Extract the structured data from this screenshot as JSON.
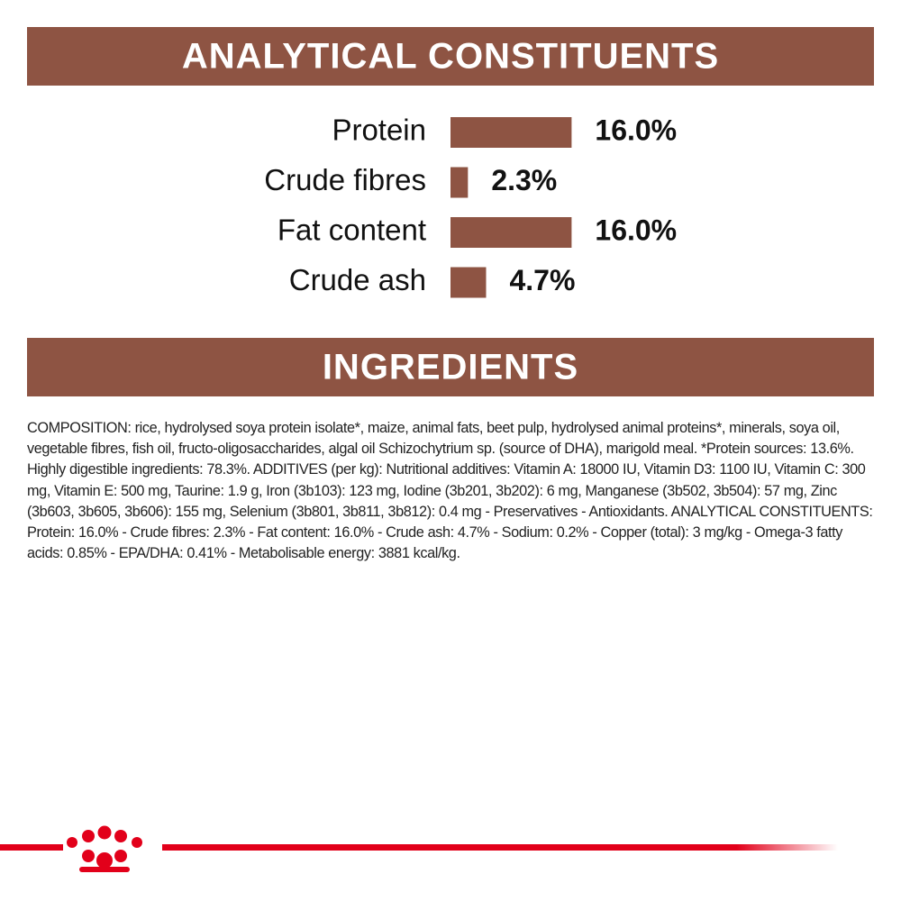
{
  "chart_data": {
    "type": "bar",
    "orientation": "horizontal",
    "title": "ANALYTICAL CONSTITUENTS",
    "categories": [
      "Protein",
      "Crude fibres",
      "Fat content",
      "Crude ash"
    ],
    "values": [
      16.0,
      2.3,
      16.0,
      4.7
    ],
    "value_labels": [
      "16.0%",
      "2.3%",
      "16.0%",
      "4.7%"
    ],
    "color": "#8e5443"
  },
  "ingredients": {
    "title": "INGREDIENTS",
    "text": "COMPOSITION: rice, hydrolysed soya protein isolate*, maize, animal fats, beet pulp, hydrolysed animal proteins*, minerals, soya oil, vegetable fibres, fish oil, fructo-oligosaccharides, algal oil Schizochytrium sp. (source of DHA), marigold meal. *Protein sources: 13.6%. Highly digestible ingredients: 78.3%. ADDITIVES (per kg): Nutritional additives: Vitamin A: 18000 IU, Vitamin D3: 1100 IU, Vitamin C: 300 mg, Vitamin E: 500 mg, Taurine: 1.9 g, Iron (3b103): 123 mg, Iodine (3b201, 3b202): 6 mg, Manganese (3b502, 3b504): 57 mg, Zinc (3b603, 3b605, 3b606): 155 mg, Selenium (3b801, 3b811, 3b812): 0.4 mg - Preservatives - Antioxidants. ANALYTICAL CONSTITUENTS: Protein: 16.0% - Crude fibres: 2.3% - Fat content: 16.0% - Crude ash: 4.7% - Sodium: 0.2% - Copper (total): 3 mg/kg - Omega-3 fatty acids: 0.85% - EPA/DHA: 0.41% - Metabolisable energy: 3881 kcal/kg."
  }
}
